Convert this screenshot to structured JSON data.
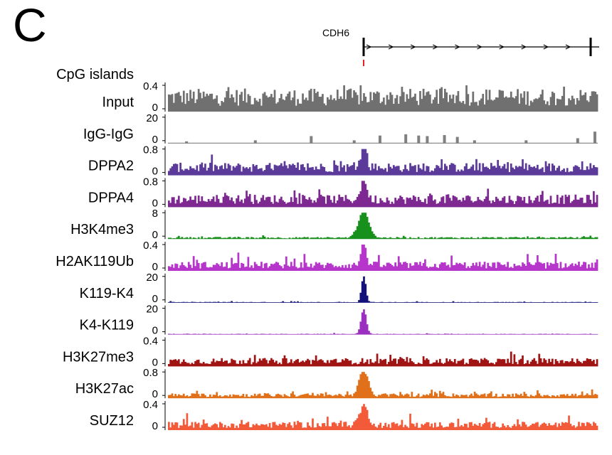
{
  "panel_label": "C",
  "gene": {
    "name": "CDH6",
    "strand": "+"
  },
  "chart_data": {
    "type": "genome_browser_tracks",
    "title": "",
    "x": {
      "label": "",
      "domain": [
        0,
        1
      ]
    },
    "cpg_island": {
      "label": "CpG islands",
      "position": 0.0,
      "color": "#e8202a"
    },
    "tracks": [
      {
        "name": "Input",
        "ymax": 0.4,
        "ticks": [
          "0.4",
          "0"
        ],
        "color": "#707070",
        "mode": "bars",
        "baseline": 0.55,
        "noise": 0.45,
        "peak": 0,
        "peakWidth": 0.01
      },
      {
        "name": "IgG-IgG",
        "ymax": 20,
        "ticks": [
          "20",
          "0"
        ],
        "color": "#808080",
        "mode": "sparse",
        "sparse": [
          [
            0.04,
            0.08
          ],
          [
            0.2,
            0.12
          ],
          [
            0.33,
            0.28
          ],
          [
            0.43,
            0.12
          ],
          [
            0.49,
            0.3
          ],
          [
            0.55,
            0.35
          ],
          [
            0.58,
            0.3
          ],
          [
            0.6,
            0.28
          ],
          [
            0.64,
            0.32
          ],
          [
            0.67,
            0.25
          ],
          [
            0.71,
            0.12
          ],
          [
            0.83,
            0.12
          ],
          [
            0.95,
            0.2
          ],
          [
            0.99,
            0.45
          ]
        ]
      },
      {
        "name": "DPPA2",
        "ymax": 0.8,
        "ticks": [
          "0.8",
          "0"
        ],
        "color": "#5b3a9a",
        "mode": "bars",
        "baseline": 0.3,
        "noise": 0.35,
        "peak": 0.95,
        "peakWidth": 0.006
      },
      {
        "name": "DPPA4",
        "ymax": 0.8,
        "ticks": [
          "0.8",
          "0"
        ],
        "color": "#7d2991",
        "mode": "bars",
        "baseline": 0.3,
        "noise": 0.3,
        "peak": 0.92,
        "peakWidth": 0.006
      },
      {
        "name": "H3K4me3",
        "ymax": 8,
        "ticks": [
          "8",
          "0"
        ],
        "color": "#18901c",
        "mode": "bars",
        "baseline": 0.05,
        "noise": 0.07,
        "peak": 1.0,
        "peakWidth": 0.012
      },
      {
        "name": "H2AK119Ub",
        "ymax": 0.4,
        "ticks": [
          "0.4",
          "0"
        ],
        "color": "#b636cc",
        "mode": "bars",
        "baseline": 0.22,
        "noise": 0.4,
        "peak": 0.85,
        "peakWidth": 0.006
      },
      {
        "name": "K119-K4",
        "ymax": 20,
        "ticks": [
          "20",
          "0"
        ],
        "color": "#12127a",
        "mode": "bars",
        "baseline": 0.02,
        "noise": 0.05,
        "peak": 1.0,
        "peakWidth": 0.005
      },
      {
        "name": "K4-K119",
        "ymax": 20,
        "ticks": [
          "20",
          "0"
        ],
        "color": "#9a2fc0",
        "mode": "bars",
        "baseline": 0.02,
        "noise": 0.03,
        "peak": 0.95,
        "peakWidth": 0.006
      },
      {
        "name": "H3K27me3",
        "ymax": 0.4,
        "ticks": [
          "0.4",
          "0"
        ],
        "color": "#a01414",
        "mode": "bars",
        "baseline": 0.2,
        "noise": 0.3,
        "peak": 0,
        "peakWidth": 0.01
      },
      {
        "name": "H3K27ac",
        "ymax": 0.8,
        "ticks": [
          "0.8",
          "0"
        ],
        "color": "#e0701a",
        "mode": "bars",
        "baseline": 0.12,
        "noise": 0.2,
        "peak": 0.95,
        "peakWidth": 0.01
      },
      {
        "name": "SUZ12",
        "ymax": 0.4,
        "ticks": [
          "0.4",
          "0"
        ],
        "color": "#f25a3a",
        "mode": "bars",
        "baseline": 0.2,
        "noise": 0.35,
        "peak": 0.7,
        "peakWidth": 0.01
      }
    ],
    "legend": "none",
    "grid": false
  }
}
